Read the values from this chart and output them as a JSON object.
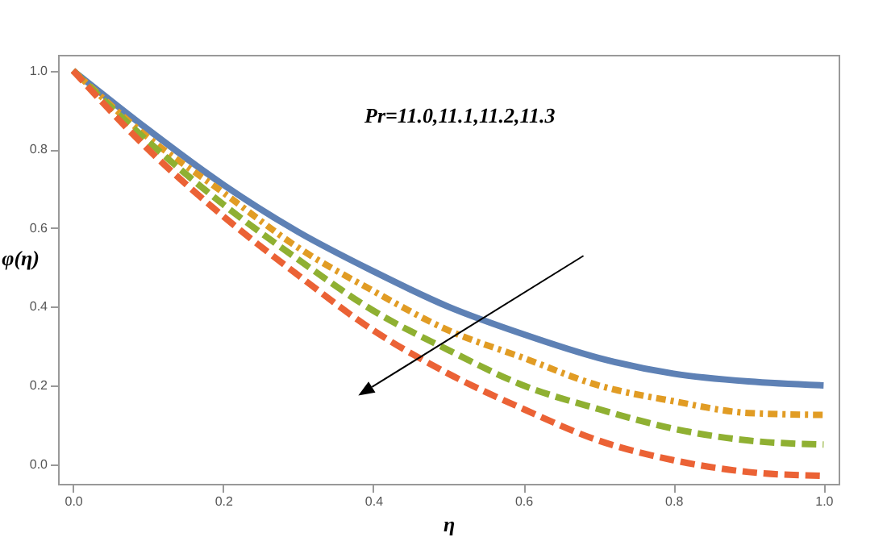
{
  "chart_data": {
    "type": "line",
    "xlabel": "η",
    "ylabel": "φ(η)",
    "annotations": [
      "Pr=11.0,11.1,11.2,11.3"
    ],
    "x": [
      0,
      0.1,
      0.2,
      0.3,
      0.4,
      0.5,
      0.6,
      0.7,
      0.8,
      0.9,
      1.0
    ],
    "series": [
      {
        "color": "#5e81b5",
        "line_style": "solid",
        "values": [
          1,
          0.85,
          0.71,
          0.59,
          0.49,
          0.4,
          0.33,
          0.27,
          0.23,
          0.21,
          0.2
        ]
      },
      {
        "color": "#e19c24",
        "line_style": "dotted",
        "values": [
          1,
          0.83,
          0.69,
          0.55,
          0.44,
          0.34,
          0.27,
          0.2,
          0.16,
          0.13,
          0.125
        ]
      },
      {
        "color": "#8fb032",
        "line_style": "dashed",
        "values": [
          1,
          0.82,
          0.66,
          0.52,
          0.39,
          0.29,
          0.2,
          0.14,
          0.09,
          0.06,
          0.05
        ]
      },
      {
        "color": "#eb6235",
        "line_style": "dashed",
        "values": [
          1,
          0.8,
          0.63,
          0.48,
          0.34,
          0.23,
          0.14,
          0.06,
          0.01,
          -0.02,
          -0.03
        ]
      }
    ],
    "xlim": [
      -0.02,
      1.02
    ],
    "ylim": [
      -0.05,
      1.04
    ],
    "xticks": [
      {
        "value": 0,
        "label": "0.0"
      },
      0.2,
      0.4,
      0.6,
      0.8,
      {
        "value": 1,
        "label": "1.0"
      }
    ],
    "yticks": [
      {
        "value": 0,
        "label": "0.0"
      },
      0.2,
      0.4,
      0.6,
      0.8,
      {
        "value": 1,
        "label": "1.0"
      }
    ],
    "grid": false,
    "marker": "none"
  }
}
